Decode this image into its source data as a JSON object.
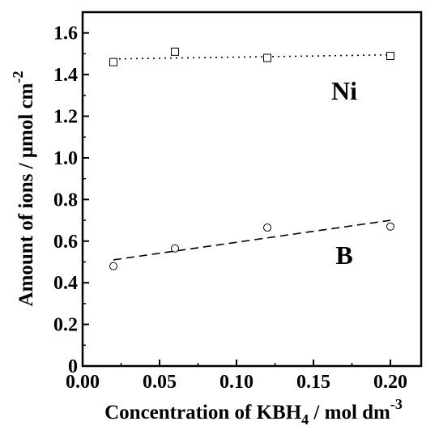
{
  "chart_data": {
    "type": "scatter",
    "title": "",
    "xlabel": "Concentration of KBH",
    "xlabel_sub": "4",
    "xlabel_unit": " / mol dm",
    "xlabel_sup": "-3",
    "ylabel": "Amount of ions / μmol cm",
    "ylabel_sup": "-2",
    "xlim": [
      0.0,
      0.22
    ],
    "ylim": [
      0.0,
      1.7
    ],
    "x_ticks": [
      0.0,
      0.05,
      0.1,
      0.15,
      0.2
    ],
    "x_tick_labels": [
      "0.00",
      "0.05",
      "0.10",
      "0.15",
      "0.20"
    ],
    "y_ticks": [
      0,
      0.2,
      0.4,
      0.6,
      0.8,
      1.0,
      1.2,
      1.4,
      1.6
    ],
    "y_tick_labels": [
      "0",
      "0.2",
      "0.4",
      "0.6",
      "0.8",
      "1.0",
      "1.2",
      "1.4",
      "1.6"
    ],
    "grid": false,
    "series": [
      {
        "name": "Ni",
        "marker": "square",
        "x": [
          0.02,
          0.06,
          0.12,
          0.2
        ],
        "y": [
          1.46,
          1.51,
          1.48,
          1.49
        ],
        "fit": {
          "style": "dotted",
          "x": [
            0.02,
            0.2
          ],
          "y": [
            1.475,
            1.495
          ]
        }
      },
      {
        "name": "B",
        "marker": "circle",
        "x": [
          0.02,
          0.06,
          0.12,
          0.2
        ],
        "y": [
          0.48,
          0.565,
          0.665,
          0.67
        ],
        "fit": {
          "style": "dashed",
          "x": [
            0.02,
            0.2
          ],
          "y": [
            0.51,
            0.7
          ]
        }
      }
    ]
  }
}
